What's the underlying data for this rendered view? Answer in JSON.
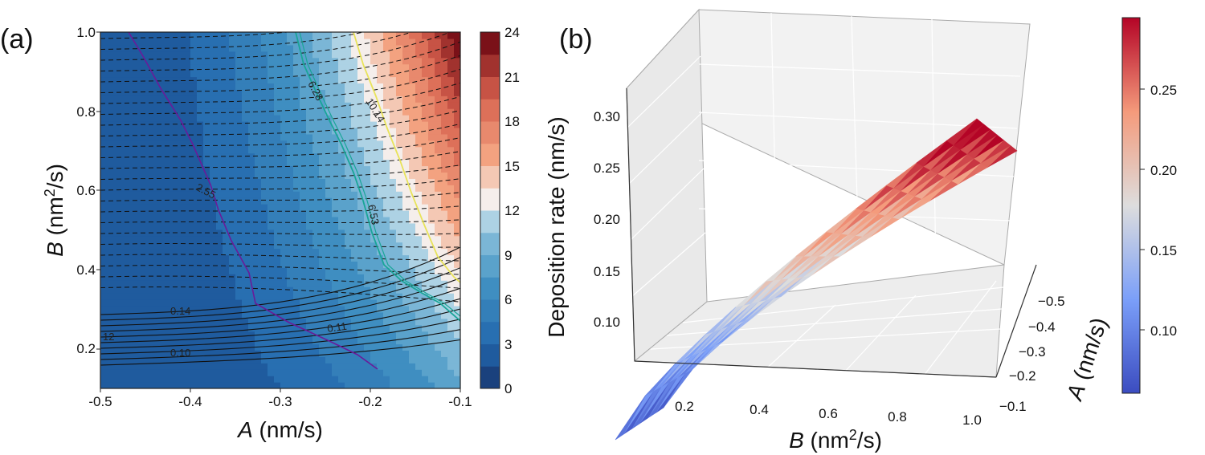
{
  "chart_data": [
    {
      "type": "heatmap",
      "panel_label": "(a)",
      "xlabel_var": "A",
      "xlabel_unit": " (nm/s)",
      "ylabel_var": "B",
      "ylabel_unit_pre": " (nm",
      "ylabel_unit_sup": "2",
      "ylabel_unit_post": "/s)",
      "xlim": [
        -0.5,
        -0.1
      ],
      "ylim": [
        0.1,
        1.0
      ],
      "x_ticks": [
        "-0.5",
        "-0.4",
        "-0.3",
        "-0.2",
        "-0.1"
      ],
      "y_ticks": [
        "0.2",
        "0.4",
        "0.6",
        "0.8",
        "1.0"
      ],
      "colorbar_ticks": [
        "0",
        "3",
        "6",
        "9",
        "12",
        "15",
        "18",
        "21",
        "24"
      ],
      "colorbar_range": [
        0,
        24
      ],
      "contour_labels": [
        {
          "text": "2.55",
          "series": "purple"
        },
        {
          "text": "6.28",
          "series": "teal"
        },
        {
          "text": "6.53",
          "series": "teal"
        },
        {
          "text": "10.14",
          "series": "yellow"
        },
        {
          "text": "0.14",
          "series": "black"
        },
        {
          "text": "0.11",
          "series": "black"
        },
        {
          "text": "0.10",
          "series": "black"
        },
        {
          "text": "12",
          "series": "black"
        }
      ],
      "colors": {
        "low": "#1f4e96",
        "mid": "#f6f6f6",
        "high": "#a50f15"
      }
    },
    {
      "type": "surface3d",
      "panel_label": "(b)",
      "xlabel_var": "B",
      "xlabel_unit_pre": " (nm",
      "xlabel_unit_sup": "2",
      "xlabel_unit_post": "/s)",
      "ylabel_var": "A",
      "ylabel_unit": " (nm/s)",
      "zlabel": "Deposition rate  (nm/s)",
      "b_ticks": [
        "0.2",
        "0.4",
        "0.6",
        "0.8",
        "1.0"
      ],
      "a_ticks": [
        "−0.5",
        "−0.4",
        "−0.3",
        "−0.2",
        "−0.1"
      ],
      "z_ticks": [
        "0.10",
        "0.15",
        "0.20",
        "0.25",
        "0.30"
      ],
      "zlim": [
        0.07,
        0.32
      ],
      "colorbar_ticks": [
        "0.10",
        "0.15",
        "0.20",
        "0.25"
      ],
      "colorbar_range": [
        0.055,
        0.29
      ],
      "colors": {
        "low": "#3b4cc0",
        "mid": "#dddddd",
        "high": "#b40426"
      }
    }
  ]
}
